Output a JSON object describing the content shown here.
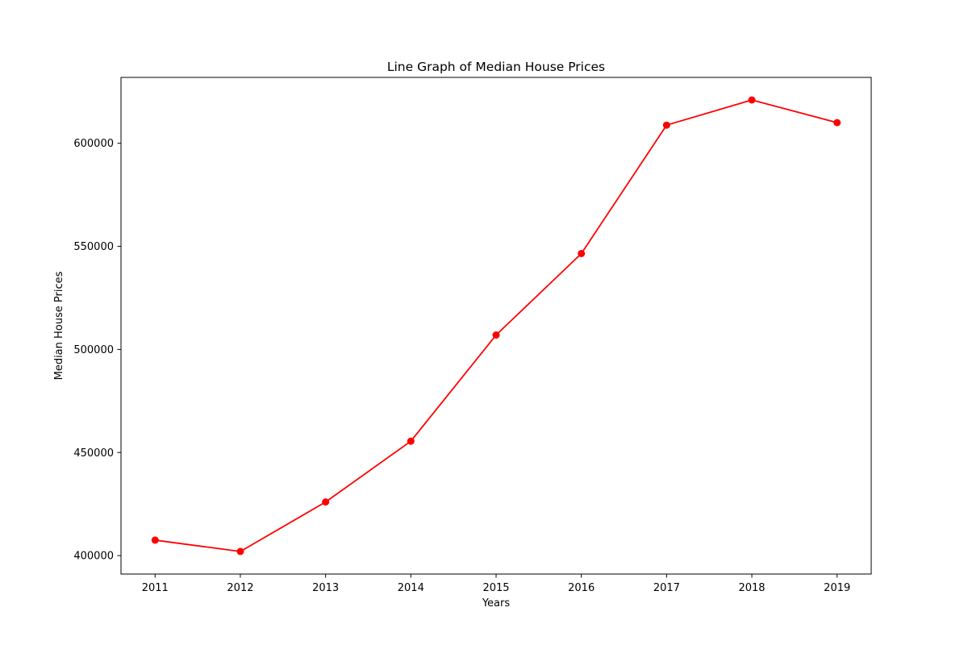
{
  "chart_data": {
    "type": "line",
    "title": "Line Graph of Median House Prices",
    "xlabel": "Years",
    "ylabel": "Median House Prices",
    "x": [
      2011,
      2012,
      2013,
      2014,
      2015,
      2016,
      2017,
      2018,
      2019
    ],
    "x_tick_labels": [
      "2011",
      "2012",
      "2013",
      "2014",
      "2015",
      "2016",
      "2017",
      "2018",
      "2019"
    ],
    "series": [
      {
        "values": [
          407500,
          402000,
          426000,
          455500,
          507000,
          546500,
          608800,
          621000,
          610000
        ],
        "color": "#ff0000",
        "marker": "circle"
      }
    ],
    "y_ticks": [
      400000,
      450000,
      500000,
      550000,
      600000
    ],
    "y_tick_labels": [
      "400000",
      "450000",
      "500000",
      "550000",
      "600000"
    ],
    "xlim": [
      2010.6,
      2019.4
    ],
    "ylim": [
      391050,
      631950
    ],
    "grid": false,
    "legend": false
  }
}
